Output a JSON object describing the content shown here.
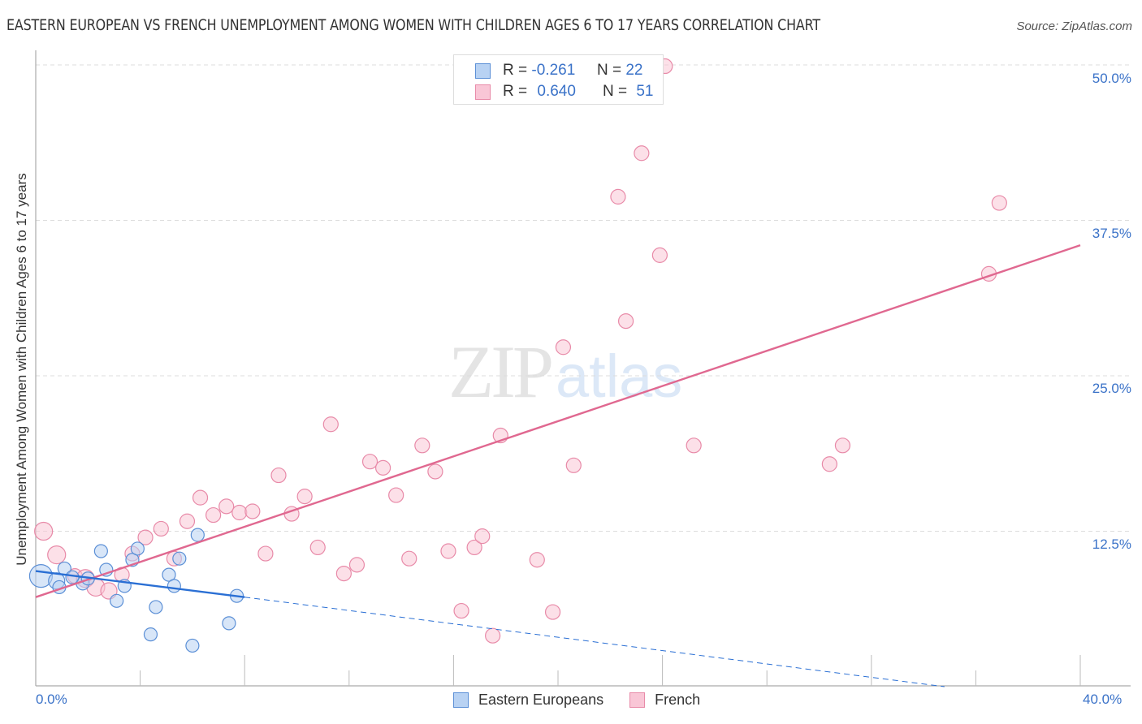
{
  "header": {
    "title": "EASTERN EUROPEAN VS FRENCH UNEMPLOYMENT AMONG WOMEN WITH CHILDREN AGES 6 TO 17 YEARS CORRELATION CHART",
    "source": "Source: ZipAtlas.com"
  },
  "watermark": {
    "zip": "ZIP",
    "atlas": "atlas"
  },
  "axes": {
    "ylabel": "Unemployment Among Women with Children Ages 6 to 17 years",
    "y_ticks": [
      "50.0%",
      "37.5%",
      "25.0%",
      "12.5%"
    ],
    "x_ticks": [
      "0.0%",
      "40.0%"
    ]
  },
  "legend_stats": {
    "rows": [
      {
        "r_label": "R =",
        "r_value": "-0.261",
        "n_label": "N =",
        "n_value": "22"
      },
      {
        "r_label": "R =",
        "r_value": "0.640",
        "n_label": "N =",
        "n_value": "51"
      }
    ]
  },
  "legend": {
    "items": [
      {
        "label": "Eastern Europeans"
      },
      {
        "label": "French"
      }
    ]
  },
  "colors": {
    "blue_fill": "#b8d2f3",
    "blue_stroke": "#5b8fd6",
    "blue_line": "#2a6fd4",
    "pink_fill": "#f9c6d6",
    "pink_stroke": "#e88aa8",
    "pink_line": "#e06890",
    "grid": "#dddddd",
    "tick_label": "#3a72c8"
  },
  "chart_data": {
    "type": "scatter",
    "title": "EASTERN EUROPEAN VS FRENCH UNEMPLOYMENT AMONG WOMEN WITH CHILDREN AGES 6 TO 17 YEARS CORRELATION CHART",
    "xlabel": "",
    "ylabel": "Unemployment Among Women with Children Ages 6 to 17 years",
    "xlim": [
      0,
      40
    ],
    "ylim": [
      0,
      50
    ],
    "x_ticks": [
      "0.0%",
      "40.0%"
    ],
    "y_ticks": [
      12.5,
      25.0,
      37.5,
      50.0
    ],
    "grid": true,
    "legend_position": "bottom",
    "series": [
      {
        "name": "Eastern Europeans",
        "R": -0.261,
        "N": 22,
        "points": [
          [
            0.2,
            8.9,
            14
          ],
          [
            0.8,
            8.5,
            10
          ],
          [
            0.9,
            8.0,
            8
          ],
          [
            1.1,
            9.5,
            8
          ],
          [
            1.8,
            8.3,
            8
          ],
          [
            2.0,
            8.7,
            8
          ],
          [
            2.5,
            10.9,
            8
          ],
          [
            2.7,
            9.4,
            8
          ],
          [
            3.1,
            6.9,
            8
          ],
          [
            3.4,
            8.1,
            8
          ],
          [
            3.7,
            10.2,
            8
          ],
          [
            3.9,
            11.1,
            8
          ],
          [
            4.4,
            4.2,
            8
          ],
          [
            4.6,
            6.4,
            8
          ],
          [
            5.1,
            9.0,
            8
          ],
          [
            5.3,
            8.1,
            8
          ],
          [
            5.5,
            10.3,
            8
          ],
          [
            6.0,
            3.3,
            8
          ],
          [
            6.2,
            12.2,
            8
          ],
          [
            7.4,
            5.1,
            8
          ],
          [
            7.7,
            7.3,
            8
          ],
          [
            1.4,
            8.8,
            8
          ]
        ],
        "trend": {
          "x0": 0,
          "y0": 9.3,
          "x1": 8.0,
          "y1": 7.2,
          "dashed_to": {
            "x": 34.8,
            "y": 0.0
          }
        }
      },
      {
        "name": "French",
        "R": 0.64,
        "N": 51,
        "points": [
          [
            0.3,
            12.5,
            11
          ],
          [
            0.8,
            10.6,
            11
          ],
          [
            1.5,
            8.9,
            9
          ],
          [
            1.9,
            8.7,
            11
          ],
          [
            2.3,
            8.0,
            11
          ],
          [
            2.8,
            7.7,
            10
          ],
          [
            3.3,
            9.0,
            9
          ],
          [
            3.7,
            10.7,
            9
          ],
          [
            4.2,
            12.0,
            9
          ],
          [
            4.8,
            12.7,
            9
          ],
          [
            5.3,
            10.3,
            9
          ],
          [
            5.8,
            13.3,
            9
          ],
          [
            6.3,
            15.2,
            9
          ],
          [
            6.8,
            13.8,
            9
          ],
          [
            7.3,
            14.5,
            9
          ],
          [
            7.8,
            14.0,
            9
          ],
          [
            8.3,
            14.1,
            9
          ],
          [
            8.8,
            10.7,
            9
          ],
          [
            9.3,
            17.0,
            9
          ],
          [
            9.8,
            13.9,
            9
          ],
          [
            10.3,
            15.3,
            9
          ],
          [
            10.8,
            11.2,
            9
          ],
          [
            11.3,
            21.1,
            9
          ],
          [
            11.8,
            9.1,
            9
          ],
          [
            12.3,
            9.8,
            9
          ],
          [
            12.8,
            18.1,
            9
          ],
          [
            13.3,
            17.6,
            9
          ],
          [
            13.8,
            15.4,
            9
          ],
          [
            14.3,
            10.3,
            9
          ],
          [
            14.8,
            19.4,
            9
          ],
          [
            15.3,
            17.3,
            9
          ],
          [
            15.8,
            10.9,
            9
          ],
          [
            16.3,
            6.1,
            9
          ],
          [
            16.8,
            11.2,
            9
          ],
          [
            17.1,
            12.1,
            9
          ],
          [
            17.5,
            4.1,
            9
          ],
          [
            17.8,
            20.2,
            9
          ],
          [
            19.2,
            10.2,
            9
          ],
          [
            19.8,
            6.0,
            9
          ],
          [
            20.2,
            27.3,
            9
          ],
          [
            20.6,
            17.8,
            9
          ],
          [
            22.3,
            39.4,
            9
          ],
          [
            22.6,
            29.4,
            9
          ],
          [
            23.2,
            42.9,
            9
          ],
          [
            23.9,
            34.7,
            9
          ],
          [
            24.1,
            49.9,
            9
          ],
          [
            25.2,
            19.4,
            9
          ],
          [
            30.4,
            17.9,
            9
          ],
          [
            30.9,
            19.4,
            9
          ],
          [
            36.5,
            33.2,
            9
          ],
          [
            36.9,
            38.9,
            9
          ]
        ],
        "trend": {
          "x0": 0,
          "y0": 7.2,
          "x1": 40,
          "y1": 35.5
        }
      }
    ]
  }
}
